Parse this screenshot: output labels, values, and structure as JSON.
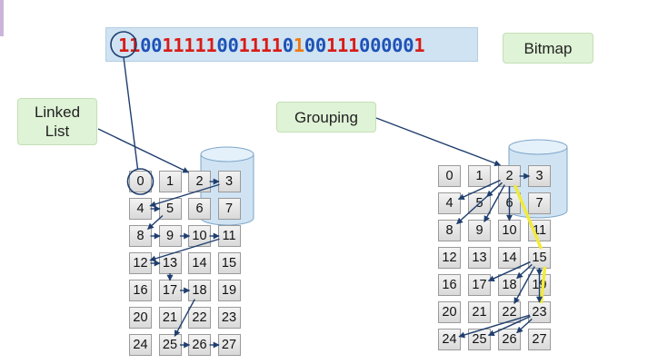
{
  "bitmap": {
    "label": "Bitmap",
    "bits": "1100111110011110100111000001",
    "highlight_index": 16,
    "colors": {
      "one": "#d81c16",
      "zero": "#1f52b6",
      "highlight": "#f07a12"
    }
  },
  "labels": {
    "linked_list": "Linked\nList",
    "grouping": "Grouping"
  },
  "disk_grid": {
    "columns": 4,
    "cells": [
      "0",
      "1",
      "2",
      "3",
      "4",
      "5",
      "6",
      "7",
      "8",
      "9",
      "10",
      "11",
      "12",
      "13",
      "14",
      "15",
      "16",
      "17",
      "18",
      "19",
      "20",
      "21",
      "22",
      "23",
      "24",
      "25",
      "26",
      "27"
    ]
  },
  "linked_list_chain": [
    2,
    3,
    4,
    5,
    8,
    9,
    10,
    11,
    12,
    13,
    17,
    18,
    25,
    26,
    27
  ],
  "grouping_links": {
    "head": 2,
    "head_points_to": [
      3,
      4,
      5
    ],
    "group_chain": [
      2,
      15,
      23
    ],
    "from_15": [
      17,
      18,
      19
    ],
    "from_23": [
      24,
      25,
      26
    ]
  },
  "colors": {
    "arrow": "#1f3e6e",
    "group_link": "#f1ea3c",
    "label_fill": "#dff3d6",
    "bit_bar": "#cfe3f3",
    "cylinder": "#cfe3f3"
  }
}
